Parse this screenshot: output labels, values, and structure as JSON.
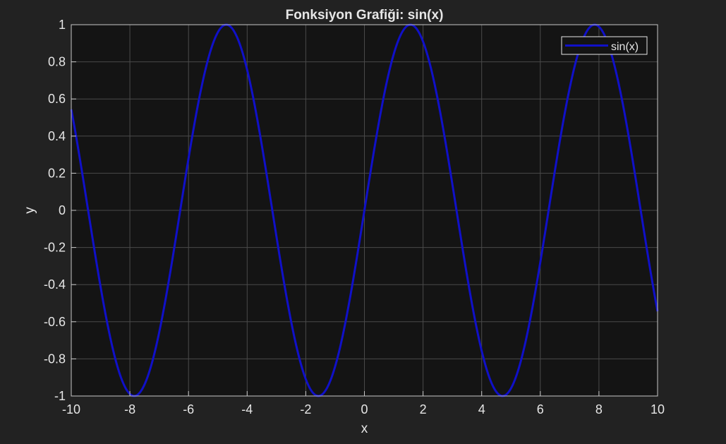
{
  "theme": {
    "figure_bg": "#222222",
    "axes_bg": "#141414",
    "grid_color": "#4a4a4a",
    "axis_color": "#c8c8c8",
    "text_color": "#e6e6e6",
    "line_color": "#1010c8"
  },
  "chart_data": {
    "type": "line",
    "title": "Fonksiyon Grafiği: sin(x)",
    "xlabel": "x",
    "ylabel": "y",
    "xlim": [
      -10,
      10
    ],
    "ylim": [
      -1,
      1
    ],
    "xticks": [
      "-10",
      "-8",
      "-6",
      "-4",
      "-2",
      "0",
      "2",
      "4",
      "6",
      "8",
      "10"
    ],
    "yticks": [
      "1",
      "0.8",
      "0.6",
      "0.4",
      "0.2",
      "0",
      "-0.2",
      "-0.4",
      "-0.6",
      "-0.8",
      "-1"
    ],
    "grid": true,
    "legend_position": "top-right",
    "series": [
      {
        "name": "sin(x)",
        "function": "sin",
        "x_range": [
          -10,
          10
        ],
        "color": "#1010c8"
      }
    ]
  }
}
